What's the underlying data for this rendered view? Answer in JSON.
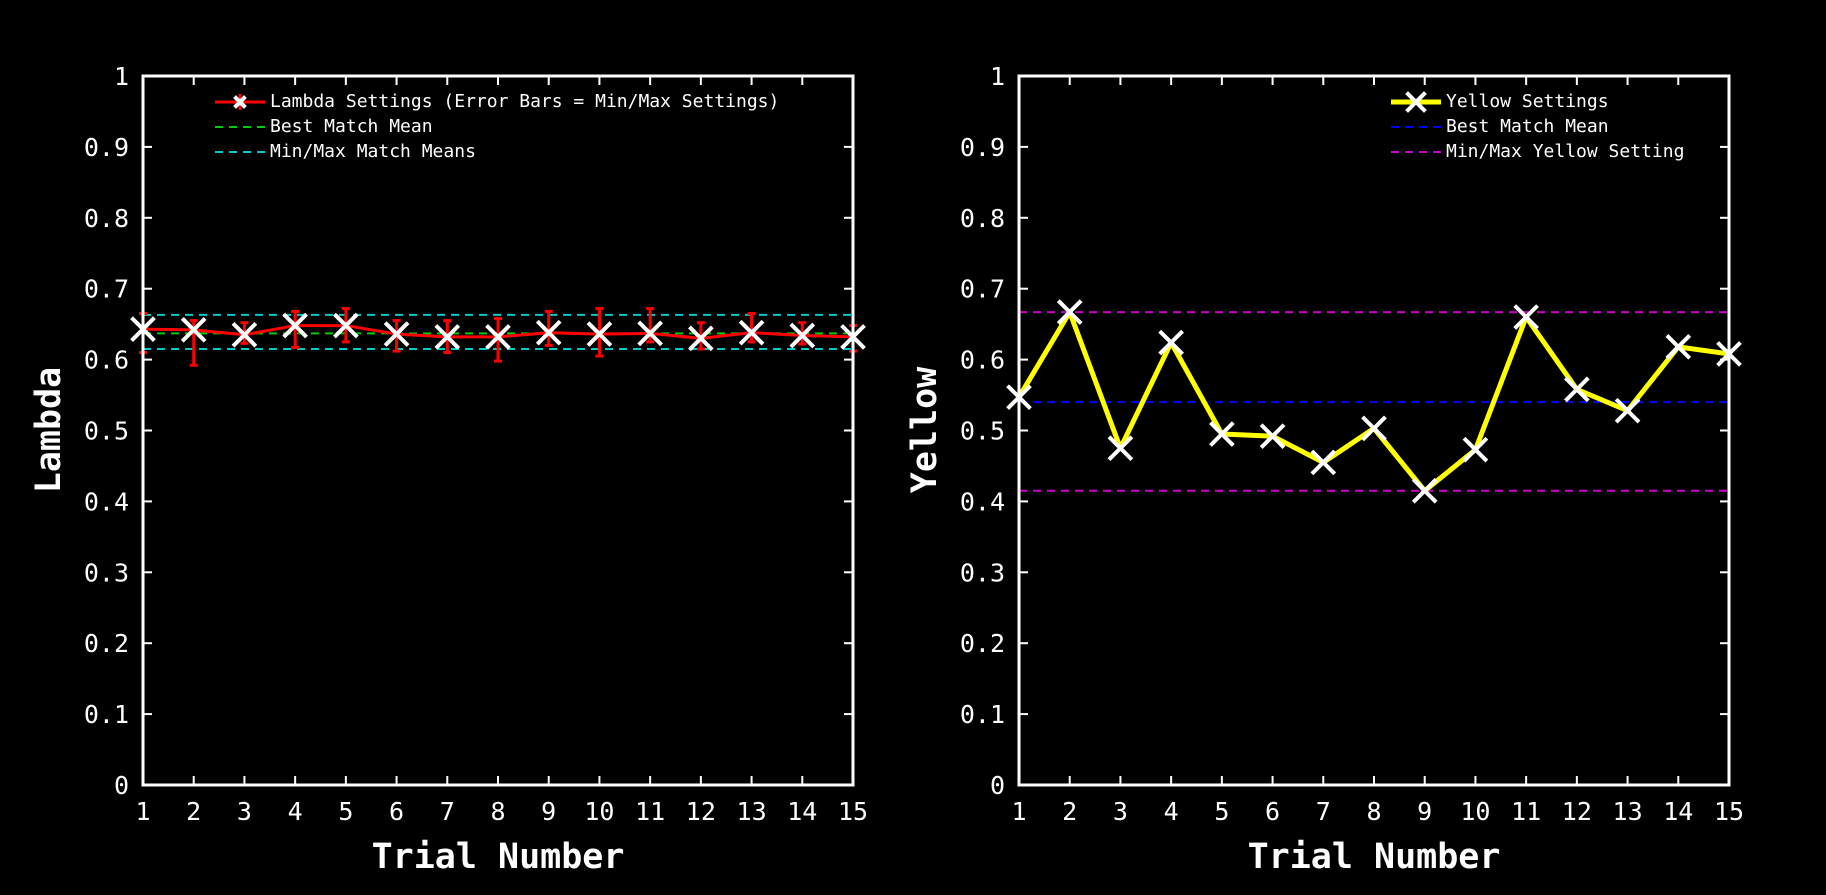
{
  "colors": {
    "background": "#000000",
    "axes": "#ffffff",
    "lambda_line": "#ff0000",
    "marker": "#ffffff",
    "best_mean_left": "#00cc00",
    "minmax_left": "#00cccc",
    "yellow_line": "#ffff00",
    "best_mean_right": "#0000ff",
    "minmax_right": "#cc00cc"
  },
  "chart_data": [
    {
      "type": "line",
      "title": "",
      "xlabel": "Trial Number",
      "ylabel": "Lambda",
      "xlim": [
        1,
        15
      ],
      "ylim": [
        0,
        1
      ],
      "xticks": [
        "1",
        "2",
        "3",
        "4",
        "5",
        "6",
        "7",
        "8",
        "9",
        "10",
        "11",
        "12",
        "13",
        "14",
        "15"
      ],
      "yticks": [
        "0",
        "0.1",
        "0.2",
        "0.3",
        "0.4",
        "0.5",
        "0.6",
        "0.7",
        "0.8",
        "0.9",
        "1"
      ],
      "grid": false,
      "legend_position": "top-right",
      "legend": [
        "Lambda Settings (Error Bars = Min/Max Settings)",
        "Best Match Mean",
        "Min/Max Match Means"
      ],
      "x": [
        1,
        2,
        3,
        4,
        5,
        6,
        7,
        8,
        9,
        10,
        11,
        12,
        13,
        14,
        15
      ],
      "series": [
        {
          "name": "Lambda Settings (Error Bars = Min/Max Settings)",
          "values": [
            0.643,
            0.642,
            0.635,
            0.648,
            0.648,
            0.636,
            0.632,
            0.632,
            0.638,
            0.636,
            0.637,
            0.63,
            0.638,
            0.634,
            0.632
          ],
          "err_min": [
            0.61,
            0.592,
            0.623,
            0.617,
            0.625,
            0.612,
            0.61,
            0.598,
            0.62,
            0.605,
            0.625,
            0.615,
            0.625,
            0.622,
            0.612
          ],
          "err_max": [
            0.665,
            0.655,
            0.652,
            0.668,
            0.672,
            0.655,
            0.655,
            0.658,
            0.668,
            0.672,
            0.672,
            0.652,
            0.665,
            0.652,
            0.648
          ]
        },
        {
          "name": "Best Match Mean",
          "hline": 0.637
        },
        {
          "name": "Min/Max Match Means",
          "hlines": [
            0.615,
            0.663
          ]
        }
      ]
    },
    {
      "type": "line",
      "title": "",
      "xlabel": "Trial Number",
      "ylabel": "Yellow",
      "xlim": [
        1,
        15
      ],
      "ylim": [
        0,
        1
      ],
      "xticks": [
        "1",
        "2",
        "3",
        "4",
        "5",
        "6",
        "7",
        "8",
        "9",
        "10",
        "11",
        "12",
        "13",
        "14",
        "15"
      ],
      "yticks": [
        "0",
        "0.1",
        "0.2",
        "0.3",
        "0.4",
        "0.5",
        "0.6",
        "0.7",
        "0.8",
        "0.9",
        "1"
      ],
      "grid": false,
      "legend_position": "top-right",
      "legend": [
        "Yellow Settings",
        "Best Match Mean",
        "Min/Max Yellow Setting"
      ],
      "x": [
        1,
        2,
        3,
        4,
        5,
        6,
        7,
        8,
        9,
        10,
        11,
        12,
        13,
        14,
        15
      ],
      "series": [
        {
          "name": "Yellow Settings",
          "values": [
            0.547,
            0.667,
            0.475,
            0.624,
            0.495,
            0.492,
            0.455,
            0.503,
            0.415,
            0.473,
            0.66,
            0.558,
            0.528,
            0.618,
            0.608
          ]
        },
        {
          "name": "Best Match Mean",
          "hline": 0.54
        },
        {
          "name": "Min/Max Yellow Setting",
          "hlines": [
            0.415,
            0.667
          ]
        }
      ]
    }
  ]
}
